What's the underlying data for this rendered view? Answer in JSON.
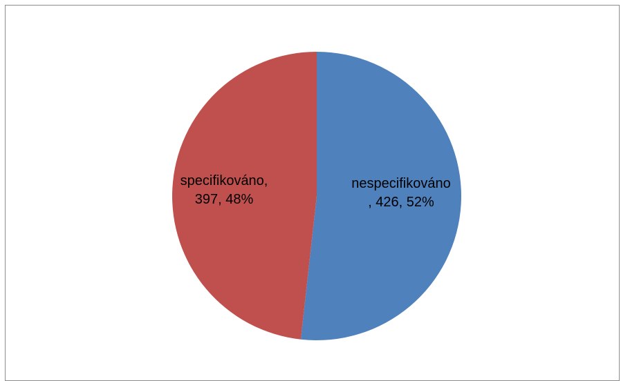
{
  "chart_data": {
    "type": "pie",
    "title": "",
    "start_angle_deg": 0,
    "direction": "clockwise",
    "slices": [
      {
        "category": "nespecifikováno",
        "value": 426,
        "percent": 52,
        "label_lines": [
          "nespecifikováno",
          ", 426, 52%"
        ],
        "color": "#4F81BD"
      },
      {
        "category": "specifikováno",
        "value": 397,
        "percent": 48,
        "label_lines": [
          "specifikováno,",
          "397, 48%"
        ],
        "color": "#C0504D"
      }
    ],
    "legend": "none"
  }
}
